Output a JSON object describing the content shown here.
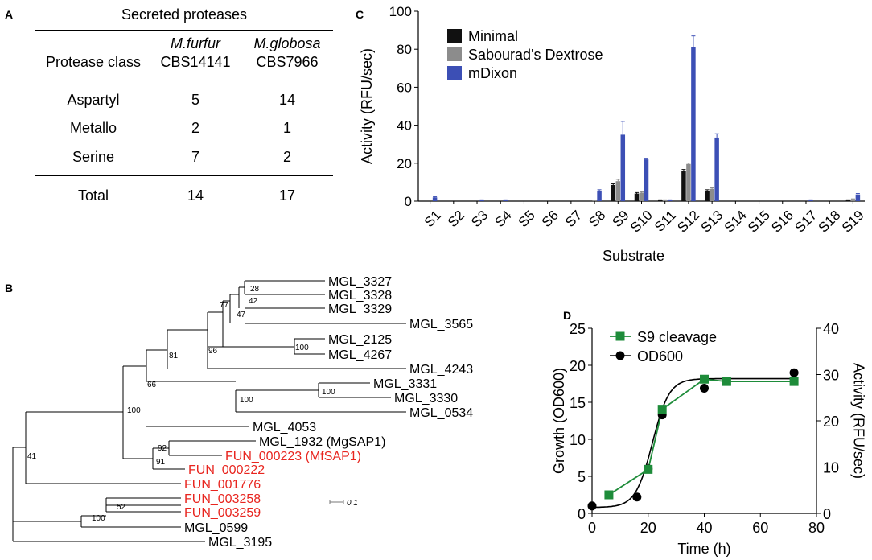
{
  "panel_letters": {
    "a": "A",
    "b": "B",
    "c": "C",
    "d": "D"
  },
  "table": {
    "title": "Secreted proteases",
    "col_header_row1": [
      "",
      "M.furfur",
      "M.globosa"
    ],
    "col_header_row2": [
      "Protease class",
      "CBS14141",
      "CBS7966"
    ],
    "rows": [
      [
        "Aspartyl",
        "5",
        "14"
      ],
      [
        "Metallo",
        "2",
        "1"
      ],
      [
        "Serine",
        "7",
        "2"
      ]
    ],
    "total_row": [
      "Total",
      "14",
      "17"
    ]
  },
  "tree": {
    "scale_label": "0.1",
    "leaves": [
      {
        "name": "MGL_3327",
        "color": "#000000"
      },
      {
        "name": "MGL_3328",
        "color": "#000000"
      },
      {
        "name": "MGL_3329",
        "color": "#000000"
      },
      {
        "name": "MGL_3565",
        "color": "#000000"
      },
      {
        "name": "MGL_2125",
        "color": "#000000"
      },
      {
        "name": "MGL_4267",
        "color": "#000000"
      },
      {
        "name": "MGL_4243",
        "color": "#000000"
      },
      {
        "name": "MGL_3331",
        "color": "#000000"
      },
      {
        "name": "MGL_3330",
        "color": "#000000"
      },
      {
        "name": "MGL_0534",
        "color": "#000000"
      },
      {
        "name": "MGL_4053",
        "color": "#000000"
      },
      {
        "name": "MGL_1932 (MgSAP1)",
        "color": "#000000"
      },
      {
        "name": "FUN_000223 (MfSAP1)",
        "color": "#e8251f"
      },
      {
        "name": "FUN_000222",
        "color": "#e8251f"
      },
      {
        "name": "FUN_001776",
        "color": "#e8251f"
      },
      {
        "name": "FUN_003258",
        "color": "#e8251f"
      },
      {
        "name": "FUN_003259",
        "color": "#e8251f"
      },
      {
        "name": "MGL_0599",
        "color": "#000000"
      },
      {
        "name": "MGL_3195",
        "color": "#000000"
      }
    ],
    "bootstrap_values": [
      "28",
      "42",
      "47",
      "77",
      "96",
      "100",
      "81",
      "100",
      "100",
      "66",
      "100",
      "92",
      "91",
      "41",
      "52",
      "100"
    ]
  },
  "chart_data": [
    {
      "type": "bar",
      "panel": "C",
      "title": "",
      "xlabel": "Substrate",
      "ylabel": "Activity (RFU/sec)",
      "ylim": [
        0,
        100
      ],
      "yticks": [
        0,
        20,
        40,
        60,
        80,
        100
      ],
      "categories": [
        "S1",
        "S2",
        "S3",
        "S4",
        "S5",
        "S6",
        "S7",
        "S8",
        "S9",
        "S10",
        "S11",
        "S12",
        "S13",
        "S14",
        "S15",
        "S16",
        "S17",
        "S18",
        "S19"
      ],
      "legend_position": "top-left",
      "series": [
        {
          "name": "Minimal",
          "color": "#111111",
          "values": [
            0,
            0,
            0,
            0,
            0,
            0,
            0,
            0,
            8.5,
            4,
            0.5,
            16,
            5.5,
            0,
            0,
            0,
            0,
            0,
            0.5
          ],
          "errors": [
            0,
            0,
            0,
            0,
            0,
            0,
            0,
            0,
            0.6,
            0.5,
            0.2,
            0.7,
            0.5,
            0,
            0,
            0,
            0,
            0,
            0.2
          ]
        },
        {
          "name": "Sabourad's Dextrose",
          "color": "#8c8c8c",
          "values": [
            0,
            0,
            0,
            0,
            0,
            0,
            0,
            0.5,
            10.5,
            4.5,
            0.5,
            19.5,
            6.5,
            0,
            0,
            0,
            0,
            0,
            1
          ],
          "errors": [
            0,
            0,
            0,
            0,
            0,
            0,
            0,
            0.1,
            1,
            0.4,
            0.2,
            0.5,
            0.5,
            0,
            0,
            0,
            0,
            0,
            0.2
          ]
        },
        {
          "name": "mDixon",
          "color": "#3c4fb5",
          "values": [
            2,
            0,
            0.5,
            0.5,
            0,
            0,
            0,
            5.5,
            35,
            22,
            0.5,
            81,
            33.5,
            0,
            0,
            0,
            0.5,
            0,
            3.5
          ],
          "errors": [
            0.3,
            0,
            0.2,
            0.2,
            0,
            0,
            0,
            0.5,
            7,
            0.6,
            0.2,
            6,
            2,
            0,
            0,
            0,
            0.2,
            0,
            0.5
          ]
        }
      ]
    },
    {
      "type": "line",
      "panel": "D",
      "xlabel": "Time (h)",
      "ylabel": "Growth (OD600)",
      "ylabel_right": "Activity (RFU/sec)",
      "xlim": [
        0,
        80
      ],
      "ylim": [
        0,
        25
      ],
      "ylim_right": [
        0,
        40
      ],
      "xticks": [
        0,
        20,
        40,
        60,
        80
      ],
      "yticks": [
        0,
        5,
        10,
        15,
        20,
        25
      ],
      "yticks_right": [
        0,
        10,
        20,
        30,
        40
      ],
      "legend_position": "top-left",
      "series": [
        {
          "name": "S9 cleavage",
          "color": "#1e8c3a",
          "axis": "right",
          "marker": "square",
          "x": [
            6,
            20,
            25,
            40,
            48,
            72
          ],
          "y": [
            4,
            9.5,
            22.5,
            29,
            28.5,
            28.5
          ]
        },
        {
          "name": "OD600",
          "color": "#000000",
          "axis": "left",
          "marker": "circle",
          "x": [
            0,
            16,
            20,
            25,
            40,
            72
          ],
          "y": [
            1,
            2.2,
            6,
            13.3,
            16.9,
            19
          ]
        }
      ],
      "fit_curve": {
        "axis": "left",
        "bottom": 0.8,
        "top": 18.2,
        "midpoint_h": 21.5,
        "slope_h": 3.0
      }
    }
  ]
}
